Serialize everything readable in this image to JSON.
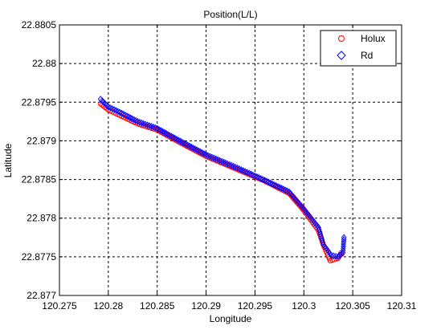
{
  "chart_data": {
    "type": "scatter",
    "title": "Position(L/L)",
    "xlabel": "Longitude",
    "ylabel": "Latitude",
    "xlim": [
      120.275,
      120.31
    ],
    "ylim": [
      22.877,
      22.8805
    ],
    "xticks": [
      120.275,
      120.28,
      120.285,
      120.29,
      120.295,
      120.3,
      120.305,
      120.31
    ],
    "yticks": [
      22.877,
      22.8775,
      22.878,
      22.8785,
      22.879,
      22.8795,
      22.88,
      22.8805
    ],
    "xtick_labels": [
      "120.275",
      "120.28",
      "120.285",
      "120.29",
      "120.295",
      "120.3",
      "120.305",
      "120.31"
    ],
    "ytick_labels": [
      "22.877",
      "22.8775",
      "22.878",
      "22.8785",
      "22.879",
      "22.8795",
      "22.88",
      "22.8805"
    ],
    "grid": true,
    "legend_position": "top-right",
    "series": [
      {
        "name": "Holux",
        "marker": "circle",
        "color": "#ff0000",
        "path": [
          [
            120.2792,
            22.87948
          ],
          [
            120.28,
            22.8794
          ],
          [
            120.281,
            22.87934
          ],
          [
            120.283,
            22.87922
          ],
          [
            120.285,
            22.87914
          ],
          [
            120.287,
            22.879
          ],
          [
            120.29,
            22.8788
          ],
          [
            120.293,
            22.87864
          ],
          [
            120.296,
            22.87848
          ],
          [
            120.2985,
            22.87832
          ],
          [
            120.3,
            22.8781
          ],
          [
            120.3015,
            22.87784
          ],
          [
            120.302,
            22.87765
          ],
          [
            120.3027,
            22.87745
          ],
          [
            120.3035,
            22.87748
          ],
          [
            120.3038,
            22.87755
          ]
        ]
      },
      {
        "name": "Rd",
        "marker": "diamond",
        "color": "#0000ff",
        "path": [
          [
            120.2792,
            22.87954
          ],
          [
            120.28,
            22.87944
          ],
          [
            120.281,
            22.87938
          ],
          [
            120.283,
            22.87925
          ],
          [
            120.285,
            22.87916
          ],
          [
            120.287,
            22.87902
          ],
          [
            120.29,
            22.87882
          ],
          [
            120.293,
            22.87866
          ],
          [
            120.296,
            22.87849
          ],
          [
            120.2985,
            22.87834
          ],
          [
            120.3,
            22.87812
          ],
          [
            120.3015,
            22.87788
          ],
          [
            120.302,
            22.87766
          ],
          [
            120.3028,
            22.87752
          ],
          [
            120.3035,
            22.8775
          ],
          [
            120.304,
            22.87755
          ],
          [
            120.3041,
            22.87775
          ]
        ]
      }
    ]
  }
}
